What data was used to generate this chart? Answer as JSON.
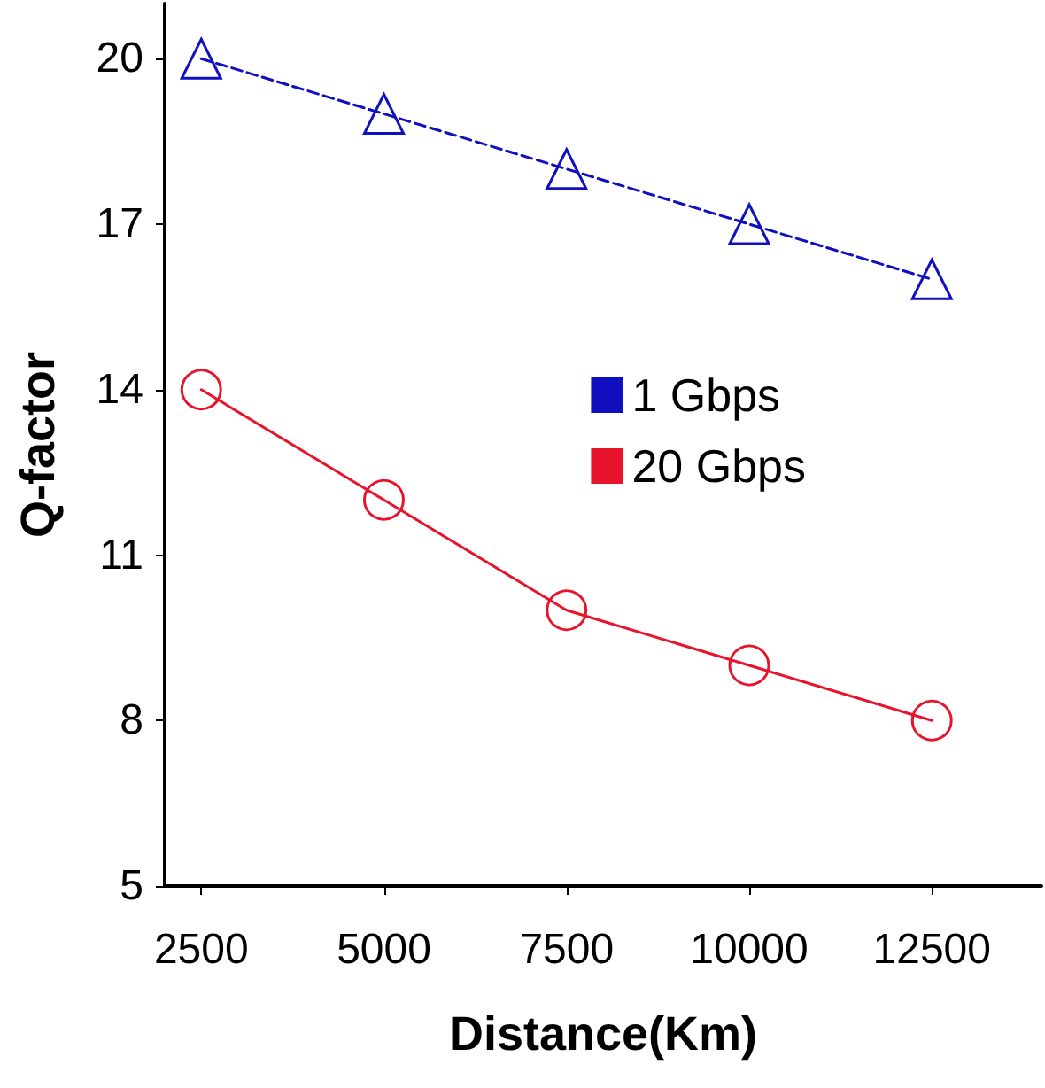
{
  "chart_data": {
    "type": "line",
    "xlabel": "Distance(Km)",
    "ylabel": "Q-factor",
    "x": [
      2500,
      5000,
      7500,
      10000,
      12500
    ],
    "series": [
      {
        "name": "1 Gbps",
        "color": "#1010c0",
        "values": [
          20,
          19,
          18,
          17,
          16
        ],
        "marker": "triangle",
        "line_style": "dashed"
      },
      {
        "name": "20 Gbps",
        "color": "#e8142c",
        "values": [
          14,
          12,
          10,
          9,
          8
        ],
        "marker": "circle",
        "line_style": "solid"
      }
    ],
    "xlim": [
      2000,
      14000
    ],
    "xticks": [
      2500,
      5000,
      7500,
      10000,
      12500
    ],
    "ylim": [
      5,
      21
    ],
    "yticks": [
      5,
      8,
      11,
      14,
      17,
      20
    ],
    "grid": false,
    "legend": "top right"
  }
}
